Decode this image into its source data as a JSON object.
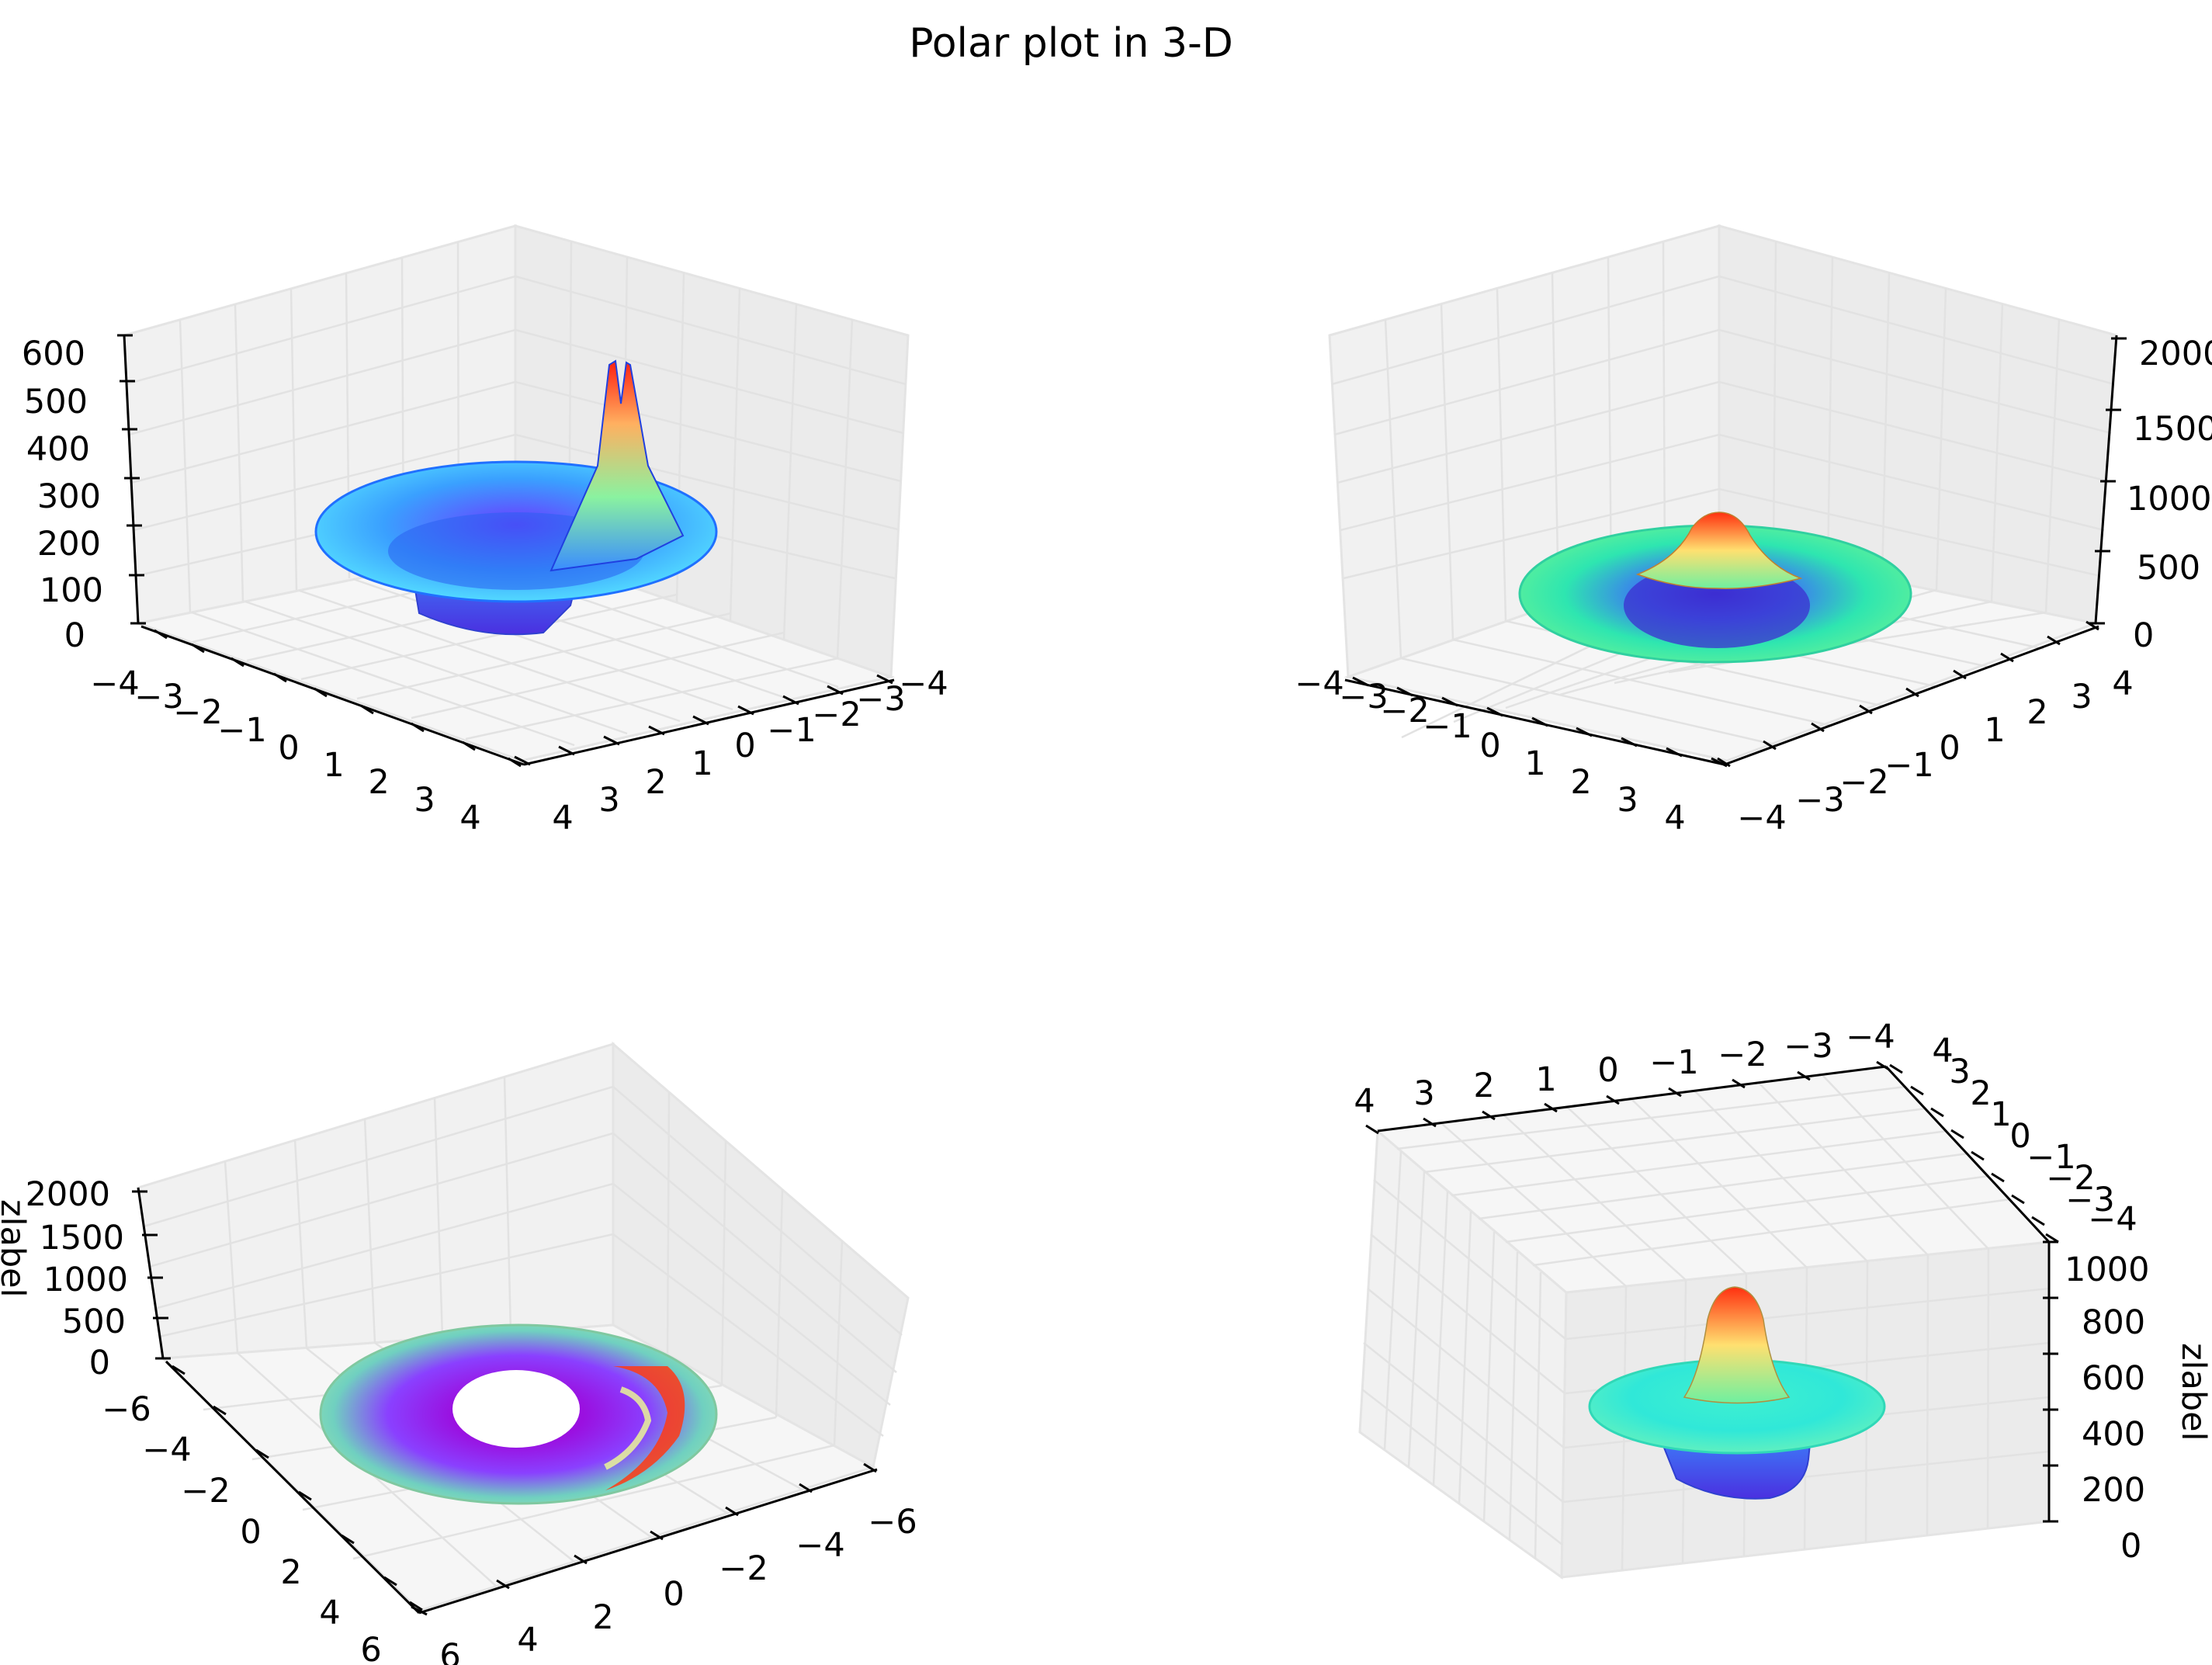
{
  "figure": {
    "title": "Polar plot in 3-D"
  },
  "chart_data": [
    {
      "type": "surface3d",
      "panel": "top-left",
      "colormap": "rainbow",
      "grid": true,
      "zlim": [
        0,
        600
      ],
      "x_ticks": [
        "−4",
        "−3",
        "−2",
        "−1",
        "0",
        "1",
        "2",
        "3",
        "4"
      ],
      "y_ticks": [
        "4",
        "3",
        "2",
        "1",
        "0",
        "−1",
        "−2",
        "−3",
        "−4"
      ],
      "z_ticks": [
        "0",
        "100",
        "200",
        "300",
        "400",
        "500",
        "600"
      ],
      "zlabel": ""
    },
    {
      "type": "surface3d",
      "panel": "top-right",
      "colormap": "rainbow",
      "grid": true,
      "zlim": [
        0,
        2000
      ],
      "x_ticks": [
        "−4",
        "−3",
        "−2",
        "−1",
        "0",
        "1",
        "2",
        "3",
        "4"
      ],
      "y_ticks": [
        "−4",
        "−3",
        "−2",
        "−1",
        "0",
        "1",
        "2",
        "3",
        "4"
      ],
      "z_ticks": [
        "0",
        "500",
        "1000",
        "1500",
        "2000"
      ],
      "zlabel": ""
    },
    {
      "type": "surface3d",
      "panel": "bottom-left",
      "colormap": "rainbow",
      "grid": true,
      "zlim": [
        0,
        2000
      ],
      "x_ticks": [
        "−6",
        "−4",
        "−2",
        "0",
        "2",
        "4",
        "6"
      ],
      "y_ticks": [
        "6",
        "4",
        "2",
        "0",
        "−2",
        "−4",
        "−6"
      ],
      "z_ticks": [
        "0",
        "500",
        "1000",
        "1500",
        "2000"
      ],
      "zlabel": "zlabel"
    },
    {
      "type": "surface3d",
      "panel": "bottom-right",
      "colormap": "rainbow",
      "grid": true,
      "zlim": [
        0,
        1000
      ],
      "x_ticks": [
        "4",
        "3",
        "2",
        "1",
        "0",
        "−1",
        "−2",
        "−3",
        "−4"
      ],
      "y_ticks": [
        "4",
        "3",
        "2",
        "1",
        "0",
        "−1",
        "−2",
        "−3",
        "−4"
      ],
      "z_ticks": [
        "0",
        "200",
        "400",
        "600",
        "800",
        "1000"
      ],
      "zlabel": "zlabel"
    }
  ]
}
